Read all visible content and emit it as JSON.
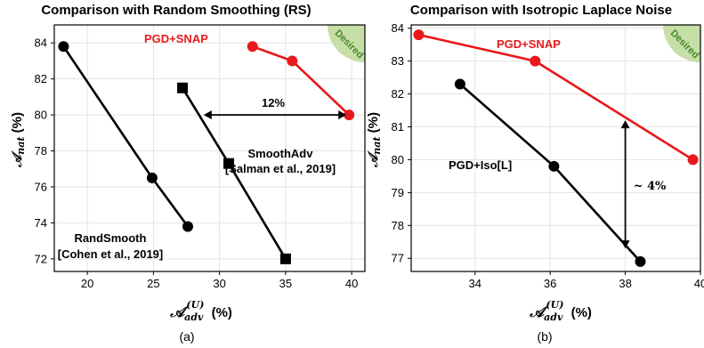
{
  "chart_data": [
    {
      "type": "line",
      "panel": "(a)",
      "title": "Comparison with Random Smoothing (RS)",
      "xlabel": "𝒜adv(U) (%)",
      "ylabel": "𝒜nat (%)",
      "xlim": [
        17.5,
        41
      ],
      "ylim": [
        71.3,
        85
      ],
      "xticks": [
        20,
        25,
        30,
        35,
        40
      ],
      "yticks": [
        72,
        74,
        76,
        78,
        80,
        82,
        84
      ],
      "grid": true,
      "series": [
        {
          "name": "PGD+SNAP",
          "color": "#e8191b",
          "marker": "circle",
          "x": [
            32.5,
            35.5,
            39.8
          ],
          "y": [
            83.8,
            83.0,
            80.0
          ]
        },
        {
          "name": "SmoothAdv [Salman et al., 2019]",
          "color": "#000000",
          "marker": "square",
          "x": [
            27.2,
            30.7,
            35.0
          ],
          "y": [
            81.5,
            77.3,
            72.0
          ]
        },
        {
          "name": "RandSmooth [Cohen et al., 2019]",
          "color": "#000000",
          "marker": "circle",
          "x": [
            18.2,
            24.9,
            27.6
          ],
          "y": [
            83.8,
            76.5,
            73.8
          ]
        }
      ],
      "annotations": {
        "gap_label": "12%",
        "gap_arrow": {
          "x_from": 28.8,
          "x_to": 39.6,
          "y": 80.0
        },
        "desired": "Desired",
        "pgd_label": "PGD+SNAP",
        "smoothadv_label": [
          "SmoothAdv",
          "[Salman et al., 2019]"
        ],
        "randsmooth_label": [
          "RandSmooth",
          "[Cohen et al., 2019]"
        ]
      },
      "caption": "(a)"
    },
    {
      "type": "line",
      "panel": "(b)",
      "title": "Comparison with Isotropic Laplace Noise",
      "xlabel": "𝒜adv(U) (%)",
      "ylabel": "𝒜nat (%)",
      "xlim": [
        32.3,
        40.0
      ],
      "ylim": [
        76.6,
        84.1
      ],
      "xticks": [
        34,
        36,
        38,
        40
      ],
      "yticks": [
        77,
        78,
        79,
        80,
        81,
        82,
        83,
        84
      ],
      "grid": true,
      "series": [
        {
          "name": "PGD+SNAP",
          "color": "#e8191b",
          "marker": "circle",
          "x": [
            32.5,
            35.6,
            39.8
          ],
          "y": [
            83.8,
            83.0,
            80.0
          ]
        },
        {
          "name": "PGD+Iso[L]",
          "color": "#000000",
          "marker": "circle",
          "x": [
            33.6,
            36.1,
            38.4
          ],
          "y": [
            82.3,
            79.8,
            76.9
          ]
        }
      ],
      "annotations": {
        "gap_label": "~ 4%",
        "gap_arrow": {
          "x": 38.0,
          "y_from": 77.3,
          "y_to": 81.2
        },
        "desired": "Desired",
        "pgd_label": "PGD+SNAP",
        "iso_label": "PGD+Iso[L]"
      },
      "caption": "(b)"
    }
  ],
  "style": {
    "red": "#e8191b",
    "black": "#000000",
    "grid": "#e3e3e3",
    "desired_fill": "#c5dfa6",
    "desired_text": "#4a8a2a"
  }
}
